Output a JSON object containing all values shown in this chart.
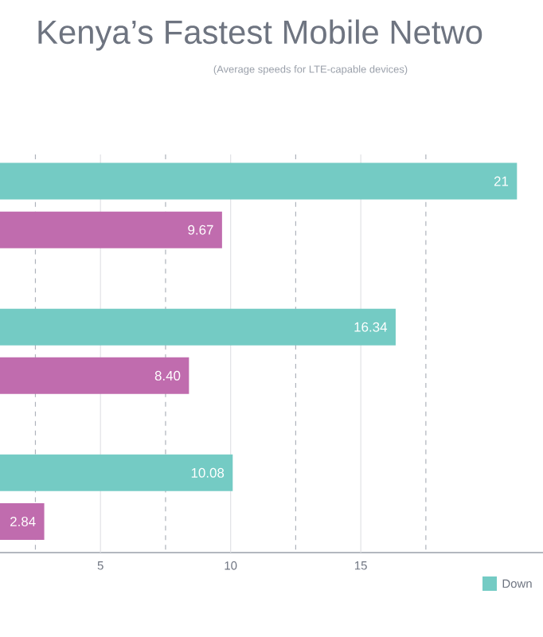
{
  "chart_data": {
    "type": "bar",
    "orientation": "horizontal",
    "title": "Kenya’s Fastest Mobile Netwo",
    "subtitle": "(Average speeds for LTE-capable devices)",
    "categories": [
      null,
      null,
      null
    ],
    "series": [
      {
        "name": "Down",
        "color": "#74cbc4",
        "values": [
          21,
          16.34,
          10.08
        ],
        "value_labels": [
          "21",
          "16.34",
          "10.08"
        ]
      },
      {
        "color": "#c06cae",
        "values": [
          9.67,
          8.4,
          2.84
        ],
        "value_labels": [
          "9.67",
          "8.40",
          "2.84"
        ]
      }
    ],
    "xlim": [
      1.14,
      22
    ],
    "xticks": [
      {
        "value": 2.5,
        "label": null
      },
      5,
      {
        "value": 7.5,
        "label": null
      },
      10,
      {
        "value": 12.5,
        "label": null
      },
      15,
      {
        "value": 17.5,
        "label": null
      }
    ],
    "grid": "x",
    "legend": "bottom right",
    "tick_labels": "x"
  }
}
